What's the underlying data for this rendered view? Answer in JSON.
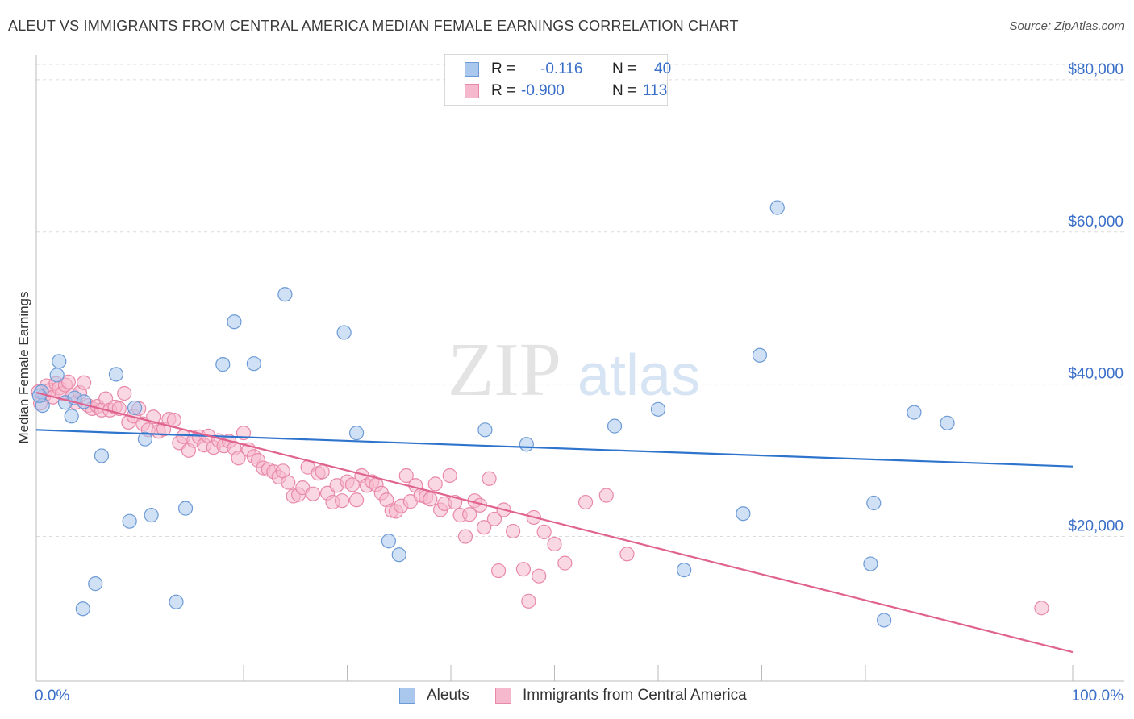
{
  "title": "ALEUT VS IMMIGRANTS FROM CENTRAL AMERICA MEDIAN FEMALE EARNINGS CORRELATION CHART",
  "source": "Source: ZipAtlas.com",
  "watermark": {
    "zip": "ZIP",
    "atlas": "atlas"
  },
  "legend": {
    "r_label": "R =",
    "n_label": "N =",
    "rows": [
      {
        "r": "-0.116",
        "n": "40"
      },
      {
        "r": "-0.900",
        "n": "113"
      }
    ]
  },
  "colors": {
    "blue_fill": "#aac8ee",
    "blue_stroke": "#6c9ad6",
    "blue_line": "#2f74cc",
    "pink_fill": "#f6b8cc",
    "pink_stroke": "#e889a8",
    "pink_line": "#e0628f",
    "axis_label": "#3a6fc8"
  },
  "chart_data": {
    "type": "scatter",
    "title": "ALEUT VS IMMIGRANTS FROM CENTRAL AMERICA MEDIAN FEMALE EARNINGS CORRELATION CHART",
    "xlabel": "",
    "ylabel": "Median Female Earnings",
    "xlim": [
      0,
      100
    ],
    "ylim": [
      1000,
      82000
    ],
    "x_tick_labels": [
      "0.0%",
      "100.0%"
    ],
    "y_ticks": [
      20000,
      40000,
      60000,
      80000
    ],
    "y_tick_labels": [
      "$20,000",
      "$40,000",
      "$60,000",
      "$80,000"
    ],
    "grid": true,
    "legend_position": "top-center",
    "series": [
      {
        "name": "Aleuts",
        "color": "blue",
        "trend": {
          "x": [
            0,
            100
          ],
          "y": [
            34000,
            29200
          ]
        },
        "points": [
          [
            0.5,
            39000
          ],
          [
            0.6,
            37200
          ],
          [
            2.0,
            41200
          ],
          [
            2.2,
            43000
          ],
          [
            2.8,
            37600
          ],
          [
            3.4,
            35800
          ],
          [
            3.7,
            38200
          ],
          [
            4.5,
            10500
          ],
          [
            4.6,
            37700
          ],
          [
            5.7,
            13800
          ],
          [
            6.3,
            30600
          ],
          [
            7.7,
            41300
          ],
          [
            9.0,
            22000
          ],
          [
            9.5,
            36900
          ],
          [
            10.5,
            32800
          ],
          [
            11.1,
            22800
          ],
          [
            13.5,
            11400
          ],
          [
            14.4,
            23700
          ],
          [
            18.0,
            42600
          ],
          [
            19.1,
            48200
          ],
          [
            21.0,
            42700
          ],
          [
            24.0,
            51800
          ],
          [
            29.7,
            46800
          ],
          [
            30.9,
            33600
          ],
          [
            34.0,
            19400
          ],
          [
            35.0,
            17600
          ],
          [
            43.3,
            34000
          ],
          [
            47.3,
            32100
          ],
          [
            55.8,
            34500
          ],
          [
            60.0,
            36700
          ],
          [
            62.5,
            15600
          ],
          [
            68.2,
            23000
          ],
          [
            69.8,
            43800
          ],
          [
            71.5,
            63200
          ],
          [
            80.5,
            16400
          ],
          [
            80.8,
            24400
          ],
          [
            81.8,
            9000
          ],
          [
            84.7,
            36300
          ],
          [
            87.9,
            34900
          ],
          [
            0.3,
            38500
          ]
        ]
      },
      {
        "name": "Immigrants from Central America",
        "color": "pink",
        "trend": {
          "x": [
            0,
            100
          ],
          "y": [
            38900,
            4800
          ]
        },
        "points": [
          [
            0.2,
            39000
          ],
          [
            0.4,
            37500
          ],
          [
            0.8,
            38600
          ],
          [
            1.0,
            39800
          ],
          [
            1.3,
            39200
          ],
          [
            1.6,
            38300
          ],
          [
            1.9,
            40100
          ],
          [
            2.2,
            39500
          ],
          [
            2.5,
            38800
          ],
          [
            2.8,
            39900
          ],
          [
            3.1,
            40300
          ],
          [
            3.5,
            38500
          ],
          [
            3.8,
            37600
          ],
          [
            4.2,
            38900
          ],
          [
            4.6,
            40200
          ],
          [
            5.0,
            37200
          ],
          [
            5.4,
            36800
          ],
          [
            5.9,
            37100
          ],
          [
            6.3,
            36600
          ],
          [
            6.7,
            38100
          ],
          [
            7.1,
            36600
          ],
          [
            7.6,
            37000
          ],
          [
            8.0,
            36800
          ],
          [
            8.5,
            38800
          ],
          [
            8.9,
            35000
          ],
          [
            9.4,
            35800
          ],
          [
            9.9,
            36800
          ],
          [
            10.3,
            34800
          ],
          [
            10.8,
            34000
          ],
          [
            11.3,
            35700
          ],
          [
            11.8,
            33800
          ],
          [
            12.3,
            34100
          ],
          [
            12.8,
            35400
          ],
          [
            13.3,
            35300
          ],
          [
            13.8,
            32300
          ],
          [
            14.2,
            33100
          ],
          [
            14.7,
            31300
          ],
          [
            15.2,
            32600
          ],
          [
            15.7,
            33100
          ],
          [
            16.2,
            32000
          ],
          [
            16.6,
            33200
          ],
          [
            17.1,
            31700
          ],
          [
            17.6,
            32600
          ],
          [
            18.1,
            31900
          ],
          [
            18.6,
            32500
          ],
          [
            19.1,
            31600
          ],
          [
            19.5,
            30300
          ],
          [
            20.0,
            33600
          ],
          [
            20.5,
            31400
          ],
          [
            21.0,
            30500
          ],
          [
            21.4,
            30000
          ],
          [
            21.9,
            29000
          ],
          [
            22.4,
            28800
          ],
          [
            22.9,
            28500
          ],
          [
            23.4,
            27800
          ],
          [
            23.8,
            28600
          ],
          [
            24.3,
            27100
          ],
          [
            24.8,
            25300
          ],
          [
            25.3,
            25500
          ],
          [
            25.7,
            26400
          ],
          [
            26.2,
            29100
          ],
          [
            26.7,
            25600
          ],
          [
            27.2,
            28300
          ],
          [
            27.6,
            28500
          ],
          [
            28.1,
            25700
          ],
          [
            28.6,
            24500
          ],
          [
            29.0,
            26700
          ],
          [
            29.5,
            24700
          ],
          [
            30.0,
            27200
          ],
          [
            30.5,
            26800
          ],
          [
            30.9,
            24800
          ],
          [
            31.4,
            28000
          ],
          [
            31.9,
            26700
          ],
          [
            32.4,
            27200
          ],
          [
            32.8,
            26800
          ],
          [
            33.3,
            25700
          ],
          [
            33.8,
            24800
          ],
          [
            34.3,
            23400
          ],
          [
            34.7,
            23300
          ],
          [
            35.2,
            24000
          ],
          [
            35.7,
            28000
          ],
          [
            36.1,
            24600
          ],
          [
            36.6,
            26700
          ],
          [
            37.1,
            25400
          ],
          [
            37.6,
            25200
          ],
          [
            38.0,
            24900
          ],
          [
            38.5,
            26900
          ],
          [
            39.0,
            23500
          ],
          [
            39.4,
            24300
          ],
          [
            39.9,
            28000
          ],
          [
            40.4,
            24500
          ],
          [
            40.9,
            22800
          ],
          [
            41.4,
            20000
          ],
          [
            41.8,
            22900
          ],
          [
            42.3,
            24700
          ],
          [
            42.8,
            24100
          ],
          [
            43.2,
            21200
          ],
          [
            43.7,
            27600
          ],
          [
            44.2,
            22300
          ],
          [
            44.6,
            15500
          ],
          [
            45.1,
            23500
          ],
          [
            46.0,
            20700
          ],
          [
            47.0,
            15700
          ],
          [
            47.5,
            11500
          ],
          [
            48.0,
            22500
          ],
          [
            48.5,
            14800
          ],
          [
            49.0,
            20600
          ],
          [
            50.0,
            19000
          ],
          [
            51.0,
            16500
          ],
          [
            53.0,
            24500
          ],
          [
            55.0,
            25400
          ],
          [
            57.0,
            17700
          ],
          [
            97.0,
            10600
          ]
        ]
      }
    ]
  },
  "bottom_legend": [
    "Aleuts",
    "Immigrants from Central America"
  ]
}
